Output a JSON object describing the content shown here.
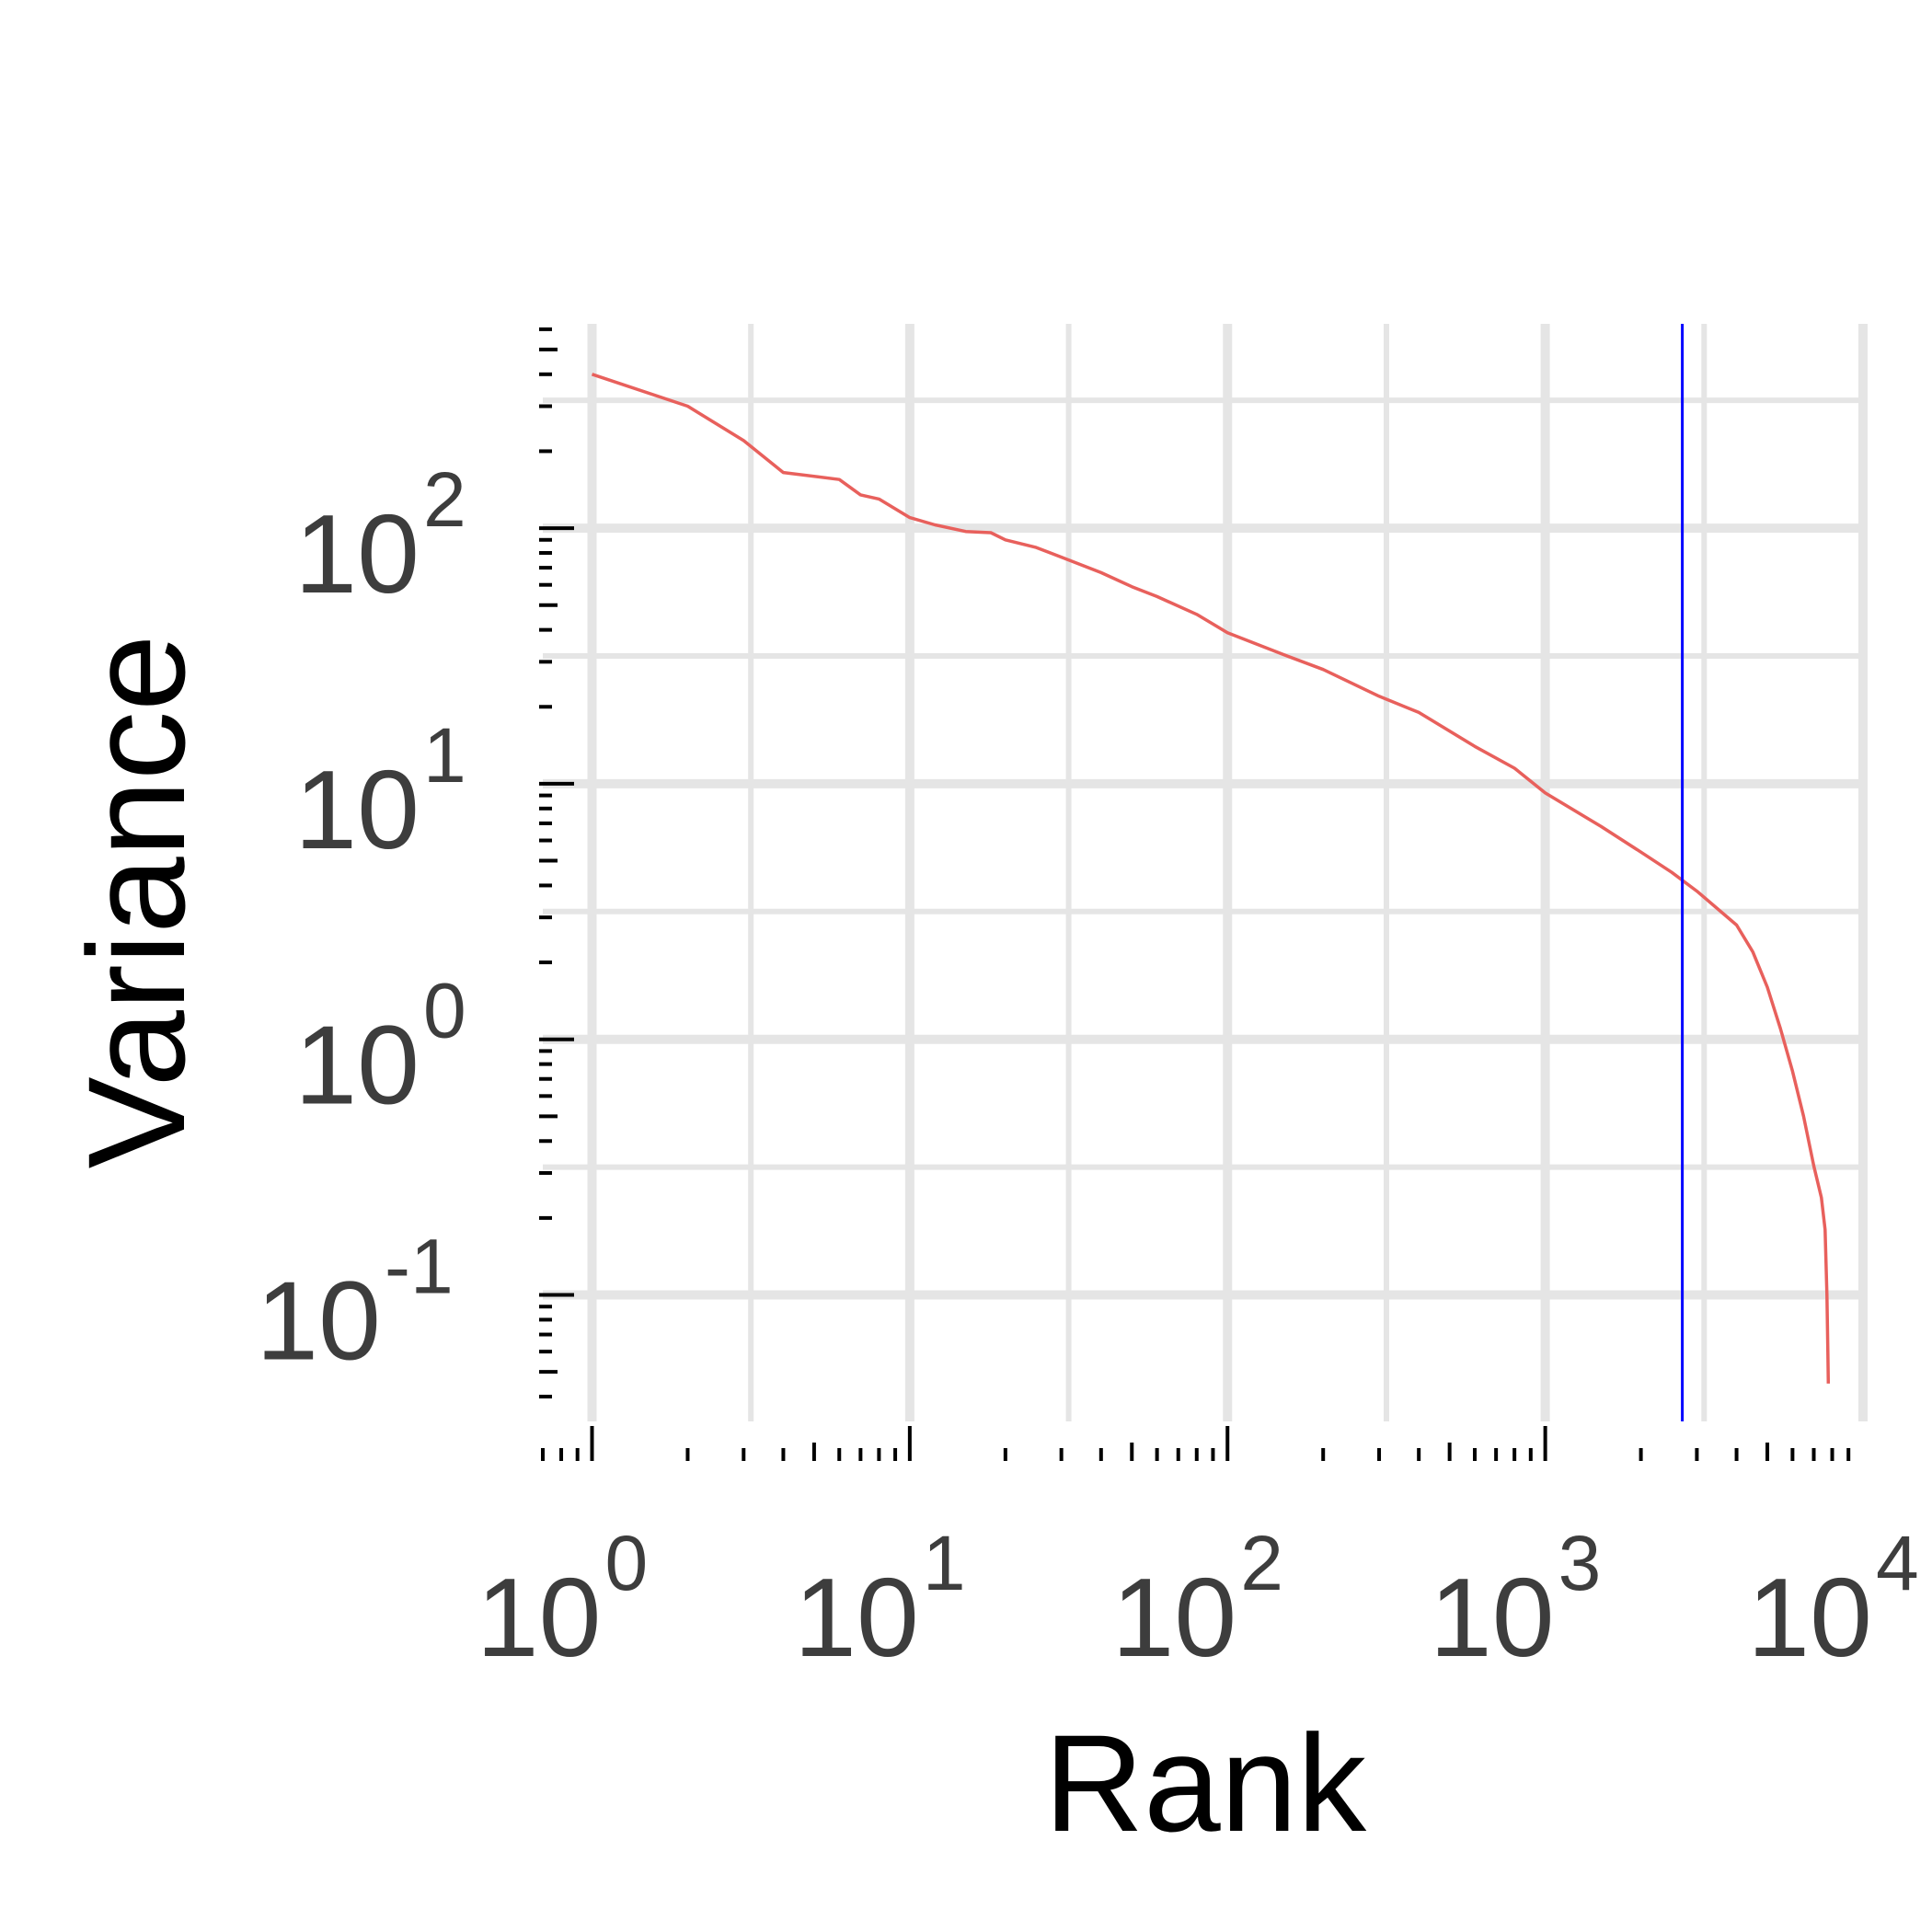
{
  "chart_data": {
    "type": "line",
    "xlabel": "Rank",
    "ylabel": "Variance",
    "x_scale": "log10",
    "y_scale": "log10",
    "xlim": [
      0.7,
      10000
    ],
    "ylim": [
      0.032,
      630
    ],
    "grid": true,
    "legend": "none",
    "x_ticks": [
      {
        "base": "10",
        "exp": "0"
      },
      {
        "base": "10",
        "exp": "1"
      },
      {
        "base": "10",
        "exp": "2"
      },
      {
        "base": "10",
        "exp": "3"
      },
      {
        "base": "10",
        "exp": "4"
      }
    ],
    "y_ticks": [
      {
        "base": "10",
        "exp": "-1"
      },
      {
        "base": "10",
        "exp": "0"
      },
      {
        "base": "10",
        "exp": "1"
      },
      {
        "base": "10",
        "exp": "2"
      }
    ],
    "series": [
      {
        "color": "#e8605c",
        "points": [
          [
            1,
            400
          ],
          [
            2,
            300
          ],
          [
            3,
            220
          ],
          [
            4,
            165
          ],
          [
            6,
            155
          ],
          [
            7,
            135
          ],
          [
            8,
            130
          ],
          [
            10,
            110
          ],
          [
            12,
            103
          ],
          [
            15,
            97
          ],
          [
            18,
            96
          ],
          [
            20,
            90
          ],
          [
            25,
            84
          ],
          [
            30,
            77
          ],
          [
            40,
            67
          ],
          [
            50,
            59
          ],
          [
            60,
            54
          ],
          [
            80,
            46
          ],
          [
            100,
            39
          ],
          [
            150,
            32
          ],
          [
            200,
            28
          ],
          [
            300,
            22
          ],
          [
            400,
            19
          ],
          [
            600,
            14
          ],
          [
            800,
            11.5
          ],
          [
            1000,
            9.2
          ],
          [
            1500,
            6.8
          ],
          [
            2000,
            5.4
          ],
          [
            2500,
            4.5
          ],
          [
            3000,
            3.8
          ],
          [
            4000,
            2.8
          ],
          [
            4500,
            2.2
          ],
          [
            5000,
            1.6
          ],
          [
            5500,
            1.1
          ],
          [
            6000,
            0.75
          ],
          [
            6500,
            0.5
          ],
          [
            7000,
            0.32
          ],
          [
            7400,
            0.24
          ],
          [
            7600,
            0.18
          ],
          [
            7700,
            0.1
          ],
          [
            7750,
            0.06
          ],
          [
            7780,
            0.045
          ]
        ]
      }
    ],
    "reference_line": {
      "orientation": "vertical",
      "x": 2700,
      "color": "#0000ff"
    }
  }
}
